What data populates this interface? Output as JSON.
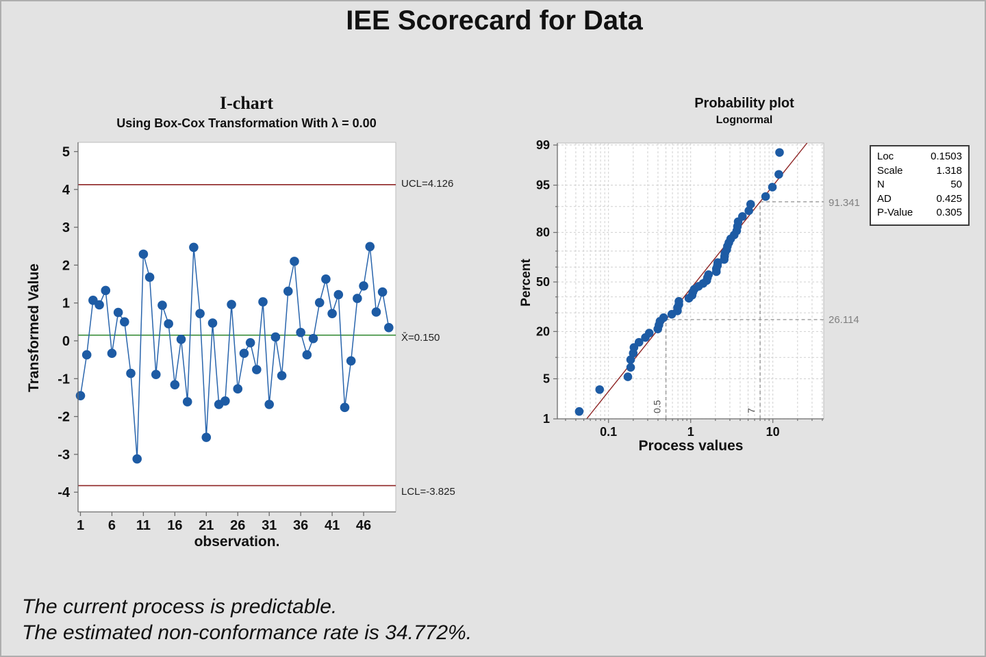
{
  "page_title": "IEE Scorecard for Data",
  "colors": {
    "background": "#e3e3e3",
    "point_blue": "#1d5ba4",
    "line_blue": "#2864ac",
    "maroon_limit": "#8e2323",
    "green_center": "#1e7d1e",
    "grid_light": "#cfcfcf",
    "grid_ref": "#8f8f8f",
    "axis_gray": "#6b6b6b",
    "plot_border": "#bdbdbd",
    "gray_label": "#7f7f7f"
  },
  "chart_data": [
    {
      "type": "line",
      "name": "i-chart",
      "title": "I-chart",
      "subtitle": "Using Box-Cox Transformation With λ = 0.00",
      "xlabel": "observation.",
      "ylabel": "Transformed Value",
      "yticks": [
        5,
        4,
        3,
        2,
        1,
        0,
        -1,
        -2,
        -3,
        -4
      ],
      "ylim": [
        -4.6,
        5.2
      ],
      "xticks": [
        1,
        6,
        11,
        16,
        21,
        26,
        31,
        36,
        41,
        46
      ],
      "xlim": [
        1,
        50
      ],
      "grid": false,
      "ucl": {
        "label": "UCL=4.126",
        "value": 4.126
      },
      "center": {
        "label": "X̄=0.150",
        "value": 0.15
      },
      "lcl": {
        "label": "LCL=-3.825",
        "value": -3.825
      },
      "values": [
        -1.45,
        -0.37,
        1.07,
        0.95,
        1.33,
        -0.33,
        0.75,
        0.5,
        -0.86,
        -3.12,
        2.29,
        1.68,
        -0.89,
        0.94,
        0.45,
        -1.16,
        0.04,
        -1.61,
        2.47,
        0.72,
        -2.55,
        0.47,
        -1.68,
        -1.59,
        0.96,
        -1.27,
        -0.33,
        -0.05,
        -0.76,
        1.03,
        -1.68,
        0.1,
        -0.92,
        1.31,
        2.1,
        0.22,
        -0.37,
        0.06,
        1.01,
        1.63,
        0.72,
        1.22,
        -1.76,
        -0.53,
        1.12,
        1.45,
        2.49,
        0.76,
        1.29,
        0.35
      ]
    },
    {
      "type": "scatter",
      "name": "probability-plot",
      "title": "Probability plot",
      "subtitle": "Lognormal",
      "xlabel": "Process values",
      "ylabel": "Percent",
      "ytick_labels": [
        99,
        95,
        80,
        50,
        20,
        5,
        1
      ],
      "ygrid_percents": [
        1,
        5,
        10,
        20,
        30,
        40,
        50,
        60,
        70,
        80,
        90,
        95,
        99
      ],
      "xticks_major": [
        0.1,
        1,
        10
      ],
      "xlim": [
        0.024,
        40
      ],
      "grid": true,
      "x_scale": "log",
      "y_scale": "probit",
      "fit": {
        "loc": 0.1503,
        "scale": 1.318
      },
      "percent_method": "median_rank",
      "process_values_sorted": [
        0.044,
        0.078,
        0.172,
        0.186,
        0.186,
        0.2,
        0.204,
        0.235,
        0.281,
        0.313,
        0.398,
        0.411,
        0.423,
        0.468,
        0.589,
        0.691,
        0.691,
        0.719,
        0.719,
        0.951,
        1.041,
        1.062,
        1.105,
        1.246,
        1.419,
        1.568,
        1.6,
        1.649,
        2.054,
        2.054,
        2.117,
        2.138,
        2.56,
        2.586,
        2.612,
        2.746,
        2.801,
        2.915,
        3.065,
        3.387,
        3.633,
        3.706,
        3.781,
        4.263,
        5.104,
        5.366,
        8.166,
        9.875,
        11.822,
        12.061
      ],
      "ref_lines": [
        {
          "x": 0.5,
          "x_label": "0.5",
          "percent": 26.114,
          "percent_label": "26.114"
        },
        {
          "x": 7,
          "x_label": "7",
          "percent": 91.341,
          "percent_label": "91.341"
        }
      ],
      "stats": {
        "rows": [
          {
            "label": "Loc",
            "value": "0.1503"
          },
          {
            "label": "Scale",
            "value": "1.318"
          },
          {
            "label": "N",
            "value": "50"
          },
          {
            "label": "AD",
            "value": "0.425"
          },
          {
            "label": "P-Value",
            "value": "0.305"
          }
        ]
      }
    }
  ],
  "footer": {
    "line1": "The current process is predictable.",
    "line2": "The estimated non-conformance rate is 34.772%."
  }
}
